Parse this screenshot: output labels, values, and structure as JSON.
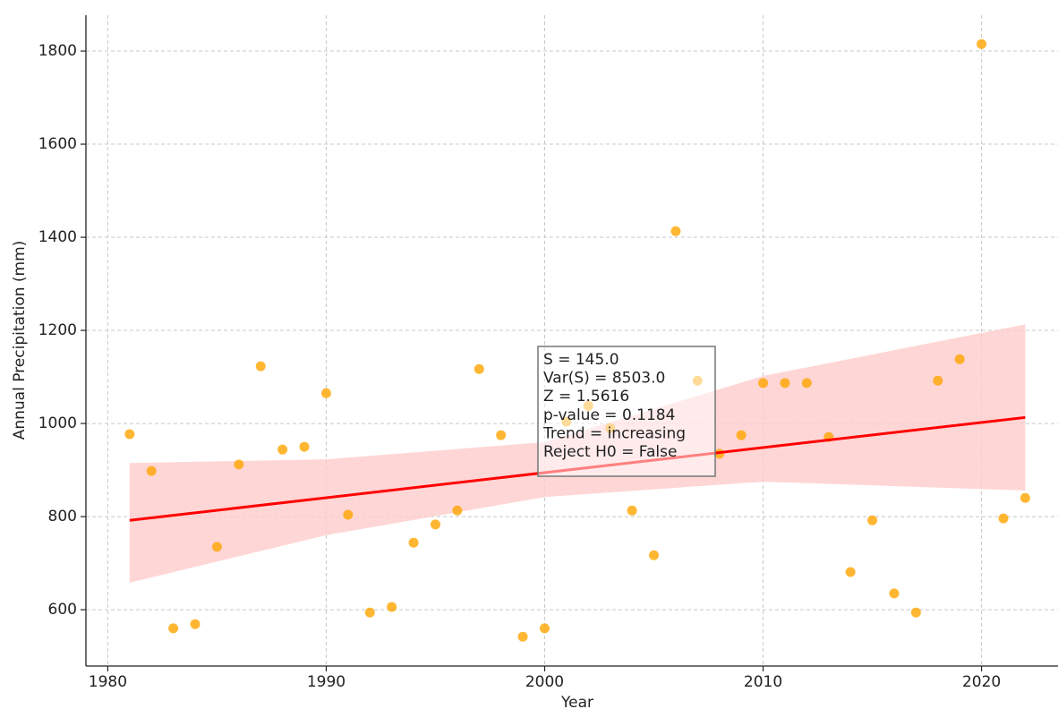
{
  "chart_data": {
    "type": "scatter",
    "x_label": "Year",
    "y_label": "Annual Precipitation (mm)",
    "x": [
      1981,
      1982,
      1983,
      1984,
      1985,
      1986,
      1987,
      1988,
      1989,
      1990,
      1991,
      1992,
      1993,
      1994,
      1995,
      1996,
      1997,
      1998,
      1999,
      2000,
      2001,
      2002,
      2003,
      2004,
      2005,
      2006,
      2007,
      2008,
      2009,
      2010,
      2011,
      2012,
      2013,
      2014,
      2015,
      2016,
      2017,
      2018,
      2019,
      2020,
      2021,
      2022
    ],
    "values": [
      977,
      898,
      560,
      569,
      735,
      912,
      1123,
      944,
      950,
      1065,
      804,
      594,
      606,
      744,
      783,
      813,
      1117,
      975,
      542,
      560,
      1004,
      1038,
      990,
      813,
      717,
      1413,
      1092,
      935,
      975,
      1087,
      1087,
      1087,
      971,
      681,
      792,
      635,
      594,
      1092,
      1138,
      1815,
      796,
      840
    ],
    "color": "#ffa500",
    "trend_line": {
      "x": [
        1981,
        2022
      ],
      "values": [
        792,
        1013
      ],
      "color": "#ff0000"
    },
    "band": {
      "x": [
        1981,
        1990,
        2000,
        2010,
        2022
      ],
      "lower": [
        658,
        760,
        842,
        875,
        856
      ],
      "upper": [
        915,
        923,
        960,
        1102,
        1213
      ],
      "color": "#ffcccc"
    },
    "annotation": [
      "S = 145.0",
      "Var(S) = 8503.0",
      "Z = 1.5616",
      "p-value = 0.1184",
      "Trend = increasing",
      "Reject H0 = False"
    ],
    "xlim": [
      1979,
      2023.5
    ],
    "ylim": [
      479,
      1877
    ],
    "xticks": [
      1980,
      1990,
      2000,
      2010,
      2020
    ],
    "yticks": [
      600,
      800,
      1000,
      1200,
      1400,
      1600,
      1800
    ],
    "grid": true
  }
}
